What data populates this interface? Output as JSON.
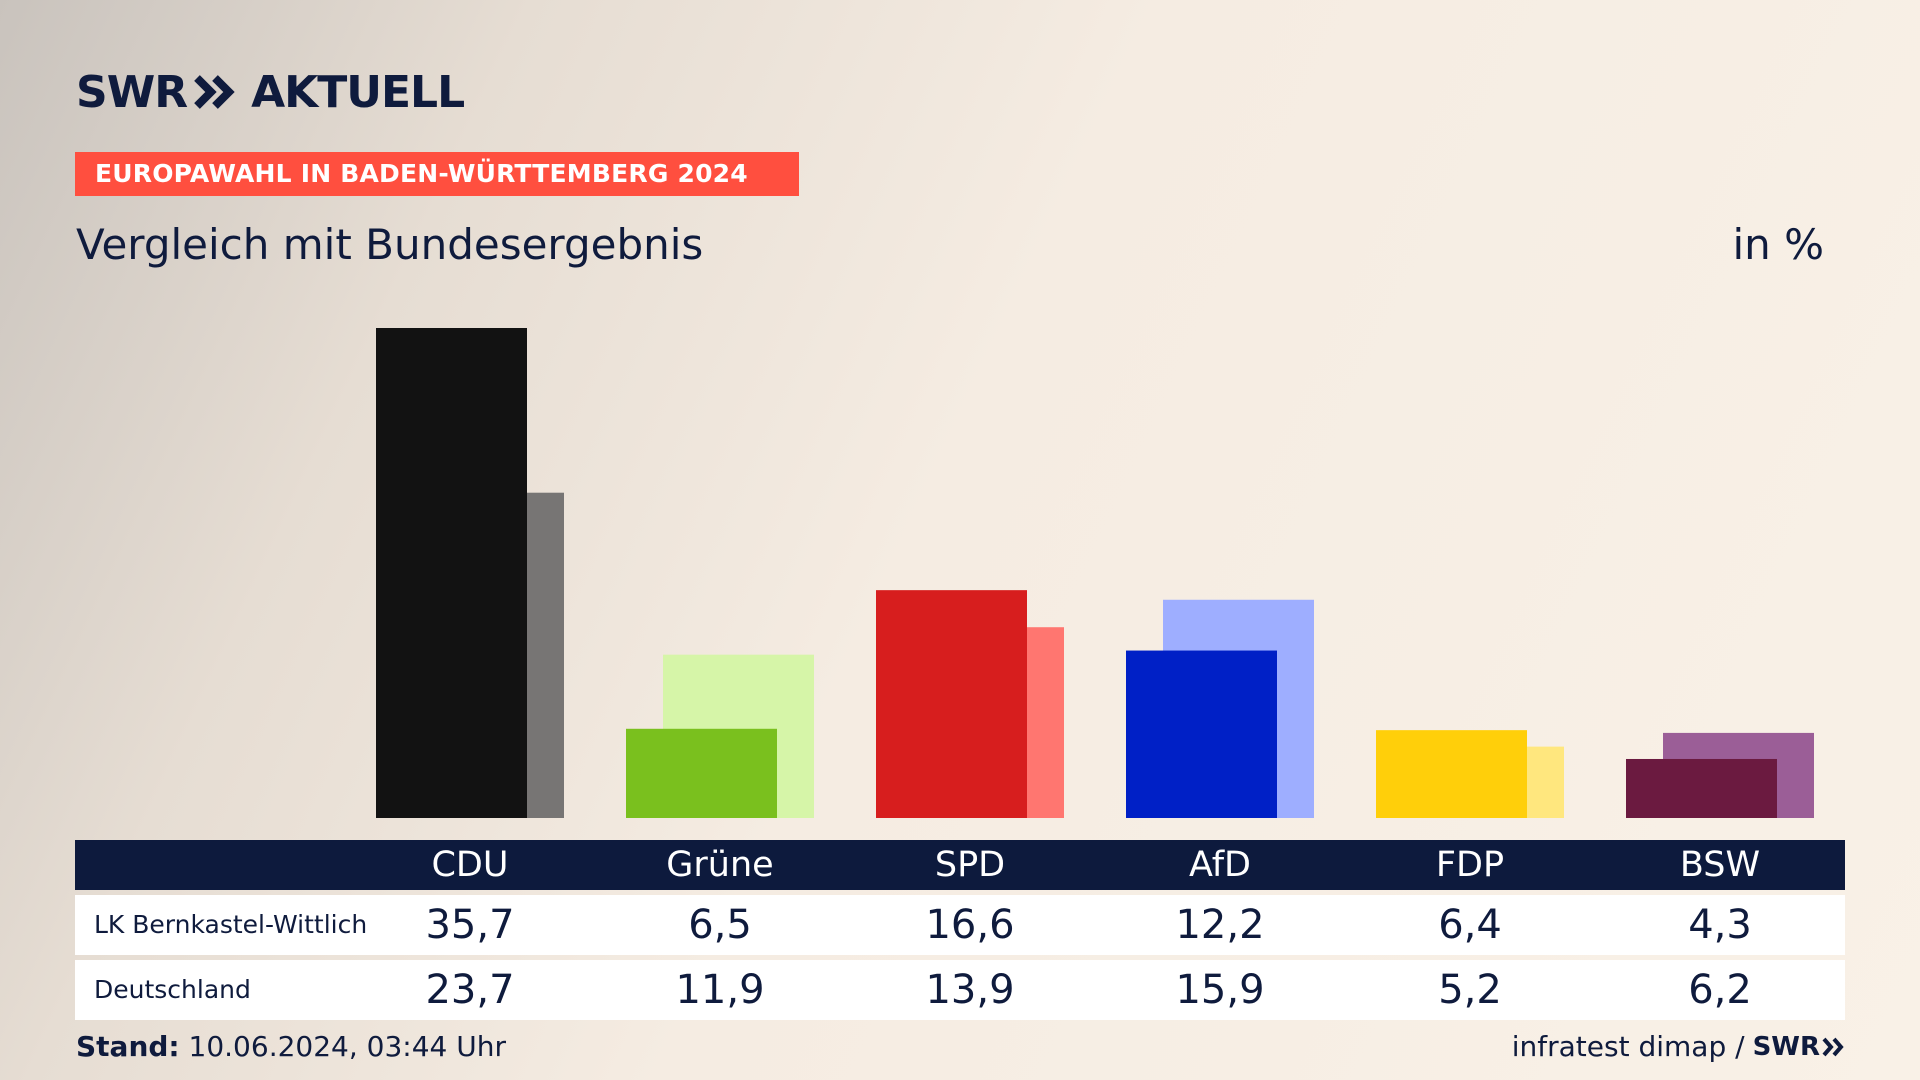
{
  "header": {
    "logo_text_left": "SWR",
    "logo_text_right": "AKTUELL",
    "banner": "EUROPAWAHL IN BADEN-WÜRTTEMBERG 2024",
    "subtitle": "Vergleich mit Bundesergebnis",
    "unit": "in %"
  },
  "chart_data": {
    "type": "bar",
    "categories": [
      "CDU",
      "Grüne",
      "SPD",
      "AfD",
      "FDP",
      "BSW"
    ],
    "series": [
      {
        "name": "LK Bernkastel-Wittlich",
        "values": [
          35.7,
          6.5,
          16.6,
          12.2,
          6.4,
          4.3
        ]
      },
      {
        "name": "Deutschland",
        "values": [
          23.7,
          11.9,
          13.9,
          15.9,
          5.2,
          6.2
        ]
      }
    ],
    "value_labels": {
      "LK Bernkastel-Wittlich": [
        "35,7",
        "6,5",
        "16,6",
        "12,2",
        "6,4",
        "4,3"
      ],
      "Deutschland": [
        "23,7",
        "11,9",
        "13,9",
        "15,9",
        "5,2",
        "6,2"
      ]
    },
    "colors": {
      "primary": [
        "#121212",
        "#7ac01e",
        "#d71e1e",
        "#0020c6",
        "#ffcf0a",
        "#6b1a40"
      ],
      "secondary": [
        "#777574",
        "#d6f5a8",
        "#ff7670",
        "#9eaeff",
        "#ffe77e",
        "#9b5e97"
      ]
    },
    "ylim": [
      0,
      36
    ],
    "grid": false
  },
  "footer": {
    "stand_label": "Stand:",
    "stand_value": "10.06.2024, 03:44 Uhr",
    "source": "infratest dimap /",
    "source_logo": "SWR"
  }
}
